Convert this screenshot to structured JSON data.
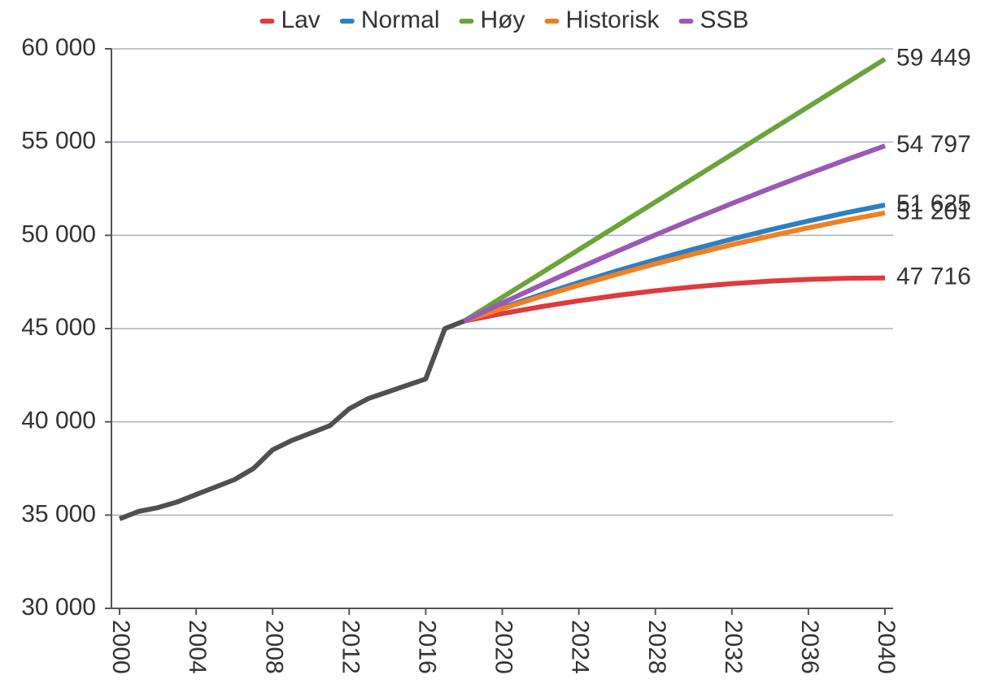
{
  "chart_data": {
    "type": "line",
    "x": [
      2000,
      2001,
      2002,
      2003,
      2004,
      2005,
      2006,
      2007,
      2008,
      2009,
      2010,
      2011,
      2012,
      2013,
      2014,
      2015,
      2016,
      2017,
      2018,
      2020,
      2022,
      2024,
      2026,
      2028,
      2030,
      2032,
      2034,
      2036,
      2038,
      2040
    ],
    "series": [
      {
        "color": "#505050",
        "values": [
          34800,
          35200,
          35400,
          35700,
          36100,
          36500,
          36900,
          37500,
          38500,
          39000,
          39400,
          39800,
          40700,
          41250,
          41600,
          41950,
          42300,
          45000,
          45400,
          null,
          null,
          null,
          null,
          null,
          null,
          null,
          null,
          null,
          null,
          null
        ]
      },
      {
        "name": "Lav",
        "color": "#e0393e",
        "values": [
          null,
          null,
          null,
          null,
          null,
          null,
          null,
          null,
          null,
          null,
          null,
          null,
          null,
          null,
          null,
          null,
          null,
          null,
          45400,
          45802,
          46166,
          46491,
          46778,
          47027,
          47238,
          47410,
          47544,
          47639,
          47697,
          47716
        ],
        "value_labels": [
          null,
          null,
          null,
          null,
          null,
          null,
          null,
          null,
          null,
          null,
          null,
          null,
          null,
          null,
          null,
          null,
          null,
          null,
          null,
          null,
          null,
          null,
          null,
          null,
          null,
          null,
          null,
          null,
          null,
          "47 716"
        ]
      },
      {
        "name": "Normal",
        "color": "#2e7fc1",
        "values": [
          null,
          null,
          null,
          null,
          null,
          null,
          null,
          null,
          null,
          null,
          null,
          null,
          null,
          null,
          null,
          null,
          null,
          null,
          45400,
          46120,
          46809,
          47468,
          48095,
          48692,
          49259,
          49794,
          50298,
          50771,
          51214,
          51625
        ],
        "value_labels": [
          null,
          null,
          null,
          null,
          null,
          null,
          null,
          null,
          null,
          null,
          null,
          null,
          null,
          null,
          null,
          null,
          null,
          null,
          null,
          null,
          null,
          null,
          null,
          null,
          null,
          null,
          null,
          null,
          null,
          "51 625"
        ]
      },
      {
        "name": "Høy",
        "color": "#6aa43a",
        "values": [
          null,
          null,
          null,
          null,
          null,
          null,
          null,
          null,
          null,
          null,
          null,
          null,
          null,
          null,
          null,
          null,
          null,
          null,
          45400,
          46677,
          47954,
          49232,
          50509,
          51786,
          53063,
          54340,
          55618,
          56895,
          58172,
          59449
        ],
        "value_labels": [
          null,
          null,
          null,
          null,
          null,
          null,
          null,
          null,
          null,
          null,
          null,
          null,
          null,
          null,
          null,
          null,
          null,
          null,
          null,
          null,
          null,
          null,
          null,
          null,
          null,
          null,
          null,
          null,
          null,
          "59 449"
        ]
      },
      {
        "name": "Historisk",
        "color": "#f47f20",
        "values": [
          null,
          null,
          null,
          null,
          null,
          null,
          null,
          null,
          null,
          null,
          null,
          null,
          null,
          null,
          null,
          null,
          null,
          null,
          45400,
          46071,
          46713,
          47327,
          47912,
          48468,
          48996,
          49494,
          49964,
          50405,
          50818,
          51201
        ],
        "value_labels": [
          null,
          null,
          null,
          null,
          null,
          null,
          null,
          null,
          null,
          null,
          null,
          null,
          null,
          null,
          null,
          null,
          null,
          null,
          null,
          null,
          null,
          null,
          null,
          null,
          null,
          null,
          null,
          null,
          null,
          "51 201"
        ]
      },
      {
        "name": "SSB",
        "color": "#9b59b6",
        "values": [
          null,
          null,
          null,
          null,
          null,
          null,
          null,
          null,
          null,
          null,
          null,
          null,
          null,
          null,
          null,
          null,
          null,
          null,
          45400,
          46371,
          47318,
          48243,
          49143,
          50021,
          50876,
          51706,
          52514,
          53298,
          54059,
          54797
        ],
        "value_labels": [
          null,
          null,
          null,
          null,
          null,
          null,
          null,
          null,
          null,
          null,
          null,
          null,
          null,
          null,
          null,
          null,
          null,
          null,
          null,
          null,
          null,
          null,
          null,
          null,
          null,
          null,
          null,
          null,
          null,
          "54 797"
        ]
      }
    ],
    "xlim": [
      2000,
      2040
    ],
    "xticks": [
      2000,
      2004,
      2008,
      2012,
      2016,
      2020,
      2024,
      2028,
      2032,
      2036,
      2040
    ],
    "ylim": [
      30000,
      60000
    ],
    "yticks": [
      {
        "value": 30000,
        "label": "30 000"
      },
      {
        "value": 35000,
        "label": "35 000"
      },
      {
        "value": 40000,
        "label": "40 000"
      },
      {
        "value": 45000,
        "label": "45 000"
      },
      {
        "value": 50000,
        "label": "50 000"
      },
      {
        "value": 55000,
        "label": "55 000"
      },
      {
        "value": 60000,
        "label": "60 000"
      }
    ],
    "grid": true,
    "legend": "top"
  }
}
